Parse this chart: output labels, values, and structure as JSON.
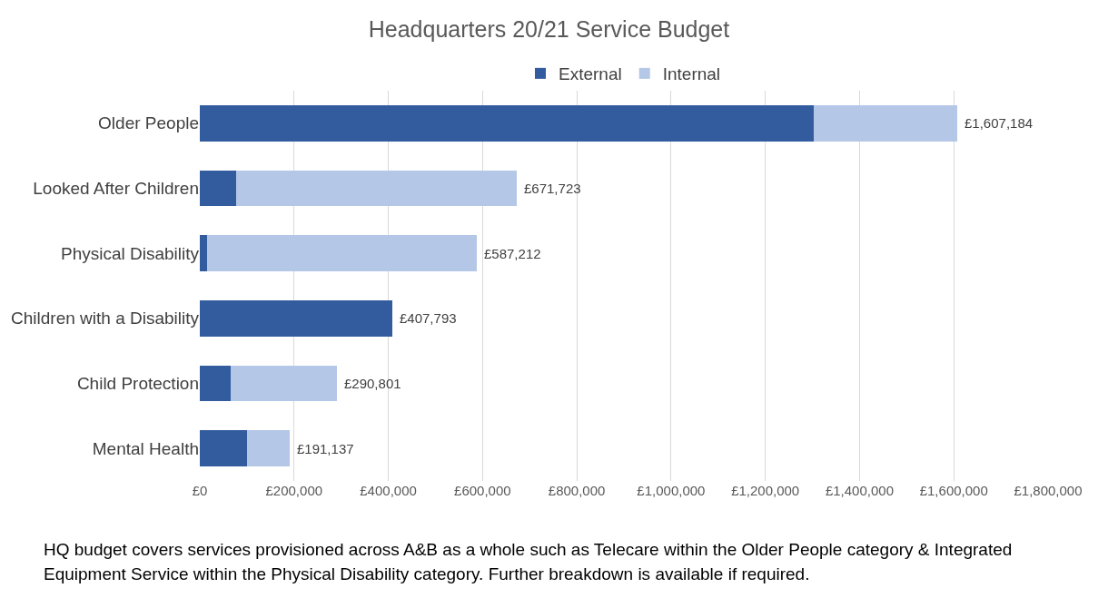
{
  "chart_data": {
    "type": "bar",
    "orientation": "horizontal",
    "stacked": true,
    "title": "Headquarters 20/21 Service Budget",
    "categories": [
      "Older People",
      "Looked After Children",
      "Physical Disability",
      "Children with a Disability",
      "Child Protection",
      "Mental Health"
    ],
    "series": [
      {
        "name": "External",
        "color": "#335c9f",
        "values": [
          1303000,
          78000,
          15000,
          407793,
          66000,
          100000
        ]
      },
      {
        "name": "Internal",
        "color": "#b4c7e7",
        "values": [
          304184,
          593723,
          572212,
          0,
          224801,
          91137
        ]
      }
    ],
    "totals": [
      "£1,607,184",
      "£671,723",
      "£587,212",
      "£407,793",
      "£290,801",
      "£191,137"
    ],
    "xlim": [
      0,
      1800000
    ],
    "xticks": [
      {
        "value": 0,
        "label": "£0"
      },
      {
        "value": 200000,
        "label": "£200,000"
      },
      {
        "value": 400000,
        "label": "£400,000"
      },
      {
        "value": 600000,
        "label": "£600,000"
      },
      {
        "value": 800000,
        "label": "£800,000"
      },
      {
        "value": 1000000,
        "label": "£1,000,000"
      },
      {
        "value": 1200000,
        "label": "£1,200,000"
      },
      {
        "value": 1400000,
        "label": "£1,400,000"
      },
      {
        "value": 1600000,
        "label": "£1,600,000"
      },
      {
        "value": 1800000,
        "label": "£1,800,000"
      }
    ],
    "grid": "x",
    "legend": "top",
    "annotations": [
      "HQ budget covers services provisioned across A&B as a whole such as Telecare within the Older People category & Integrated Equipment Service within the Physical Disability category. Further breakdown is available if required."
    ]
  }
}
